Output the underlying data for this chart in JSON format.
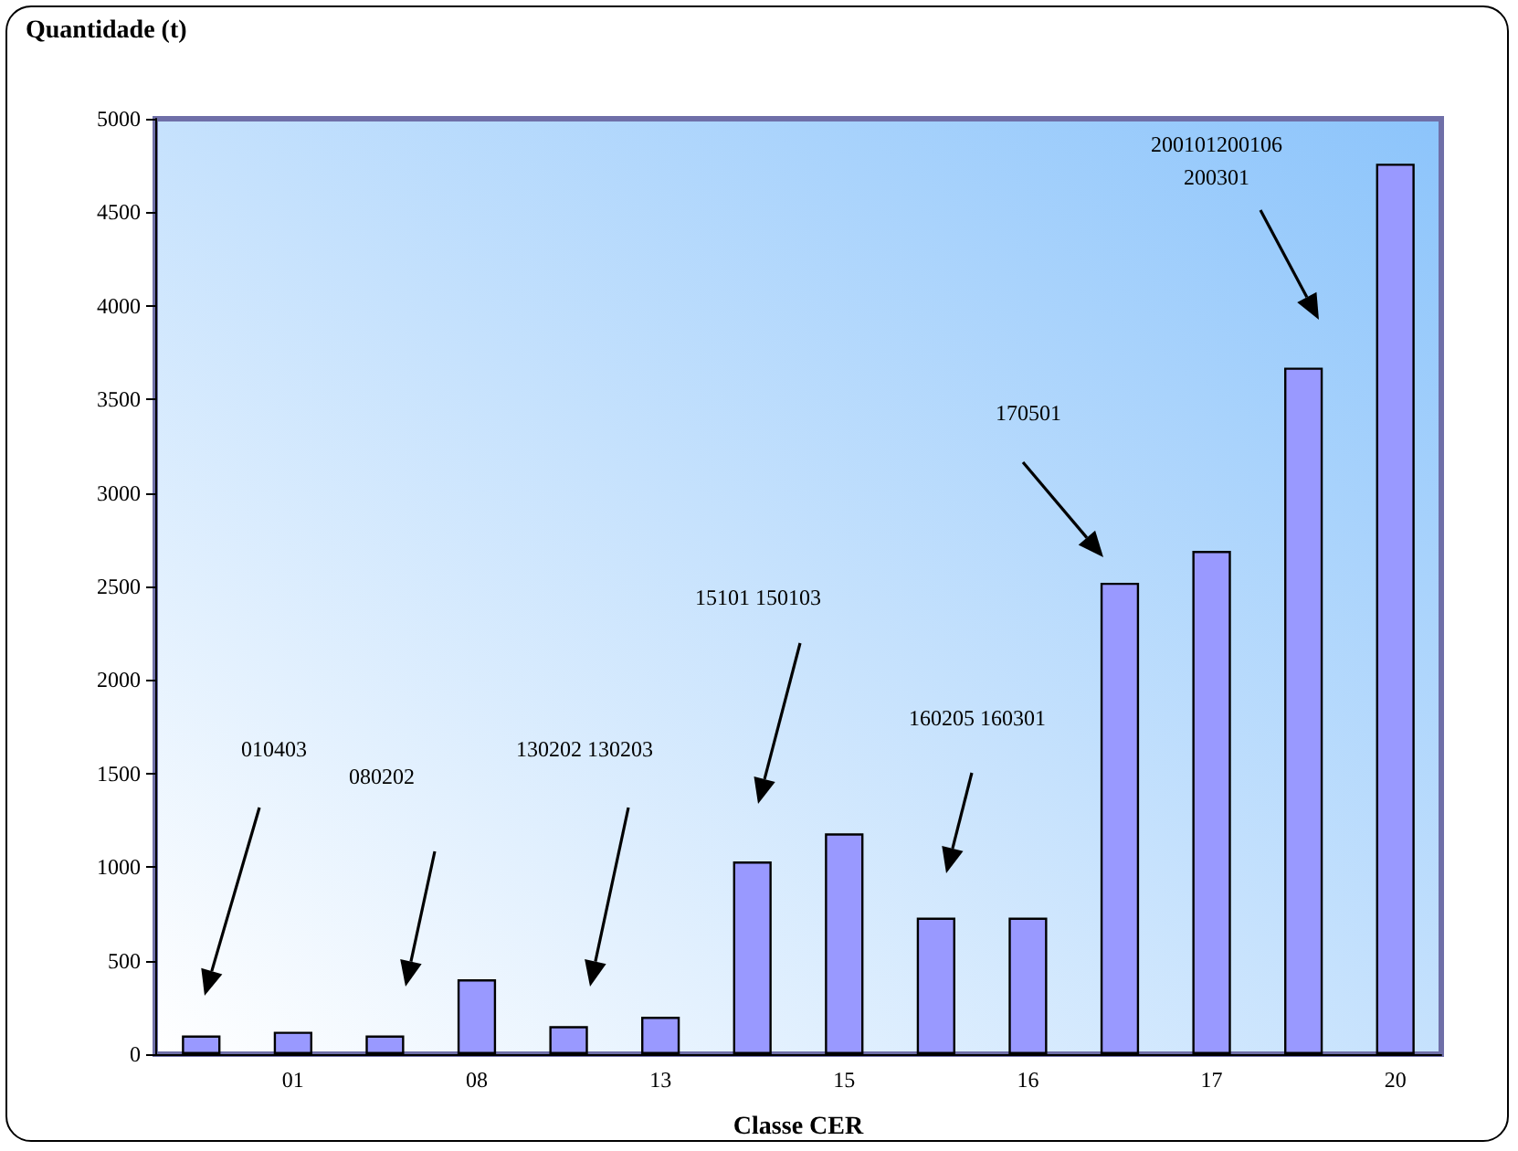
{
  "chart_data": {
    "type": "bar",
    "ylabel": "Quantidade (t)",
    "xlabel": "Classe CER",
    "categories": [
      null,
      "01",
      null,
      "08",
      null,
      "13",
      null,
      "15",
      null,
      "16",
      null,
      "17",
      null,
      "20"
    ],
    "values": [
      100,
      120,
      100,
      400,
      150,
      200,
      1030,
      1180,
      730,
      730,
      2520,
      2690,
      3670,
      4760
    ],
    "color": "#9999ff",
    "ylim": [
      0,
      5000
    ],
    "yticks": [
      0,
      500,
      1000,
      1500,
      2000,
      2500,
      3000,
      3500,
      4000,
      4500,
      5000
    ],
    "grid": false,
    "annotations": [
      "010403",
      "080202",
      "130202 130203",
      "15101 150103",
      "160205 160301",
      "170501",
      "200101200106\n200301"
    ]
  }
}
